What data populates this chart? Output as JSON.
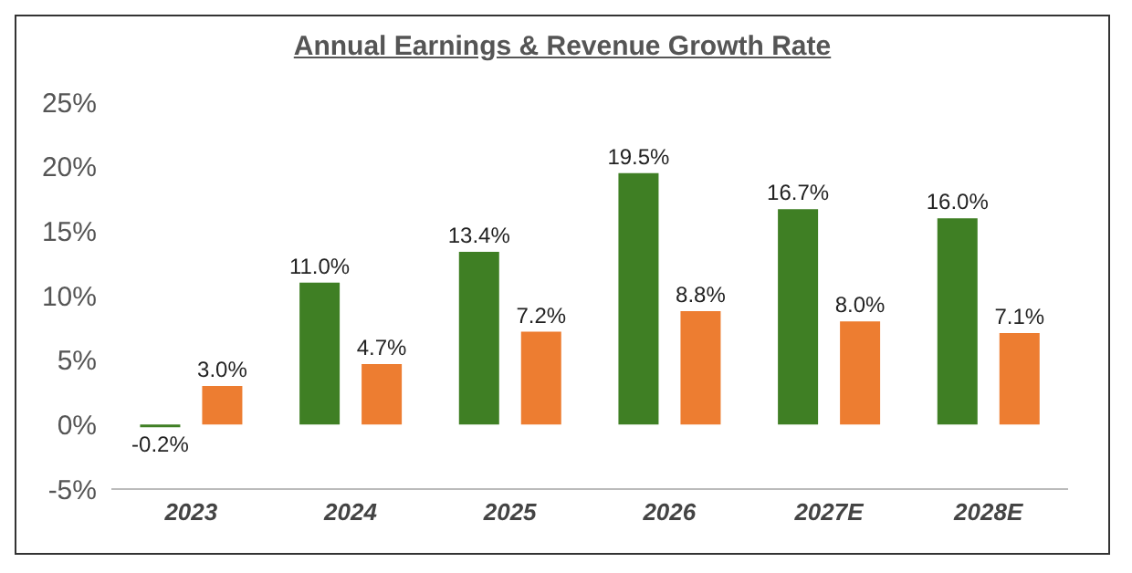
{
  "chart_data": {
    "type": "bar",
    "title": "Annual Earnings & Revenue Growth Rate",
    "categories": [
      "2023",
      "2024",
      "2025",
      "2026",
      "2027E",
      "2028E"
    ],
    "series": [
      {
        "color": "#3f7f24",
        "values": [
          -0.2,
          11.0,
          13.4,
          19.5,
          16.7,
          16.0
        ],
        "value_labels": [
          "-0.2%",
          "11.0%",
          "13.4%",
          "19.5%",
          "16.7%",
          "16.0%"
        ]
      },
      {
        "color": "#ed7d31",
        "values": [
          3.0,
          4.7,
          7.2,
          8.8,
          8.0,
          7.1
        ],
        "value_labels": [
          "3.0%",
          "4.7%",
          "7.2%",
          "8.8%",
          "8.0%",
          "7.1%"
        ]
      }
    ],
    "ylim": [
      -5,
      25
    ],
    "yticks": [
      {
        "value": -5,
        "label": "-5%"
      },
      {
        "value": 0,
        "label": "0%"
      },
      {
        "value": 5,
        "label": "5%"
      },
      {
        "value": 10,
        "label": "10%"
      },
      {
        "value": 15,
        "label": "15%"
      },
      {
        "value": 20,
        "label": "20%"
      },
      {
        "value": 25,
        "label": "25%"
      }
    ],
    "grid": false,
    "legend": false
  }
}
